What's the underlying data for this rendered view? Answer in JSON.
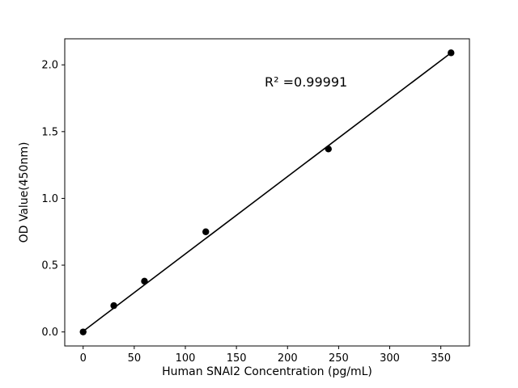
{
  "figure": {
    "background": "#ffffff"
  },
  "chart_data": {
    "type": "scatter",
    "title": "",
    "xlabel": "Human SNAI2 Concentration (pg/mL)",
    "ylabel": "OD Value(450nm)",
    "points": [
      [
        0,
        0.0
      ],
      [
        30,
        0.197
      ],
      [
        60,
        0.38
      ],
      [
        120,
        0.75
      ],
      [
        240,
        1.37
      ],
      [
        360,
        2.09
      ]
    ],
    "fit_line": [
      [
        0,
        0.005
      ],
      [
        360,
        2.09
      ]
    ],
    "annotation": {
      "text": "R² =0.99991",
      "x": 178,
      "y": 1.85
    },
    "xlim": [
      -18,
      378
    ],
    "ylim": [
      -0.105,
      2.195
    ],
    "xticks": [
      0,
      50,
      100,
      150,
      200,
      250,
      300,
      350
    ],
    "xtick_labels": [
      "0",
      "50",
      "100",
      "150",
      "200",
      "250",
      "300",
      "350"
    ],
    "yticks": [
      0.0,
      0.5,
      1.0,
      1.5,
      2.0
    ],
    "ytick_labels": [
      "0.0",
      "0.5",
      "1.0",
      "1.5",
      "2.0"
    ],
    "grid": false,
    "legend": null,
    "marker_color": "#000000",
    "line_color": "#000000",
    "marker_size": 4.2,
    "line_width": 1.6
  }
}
